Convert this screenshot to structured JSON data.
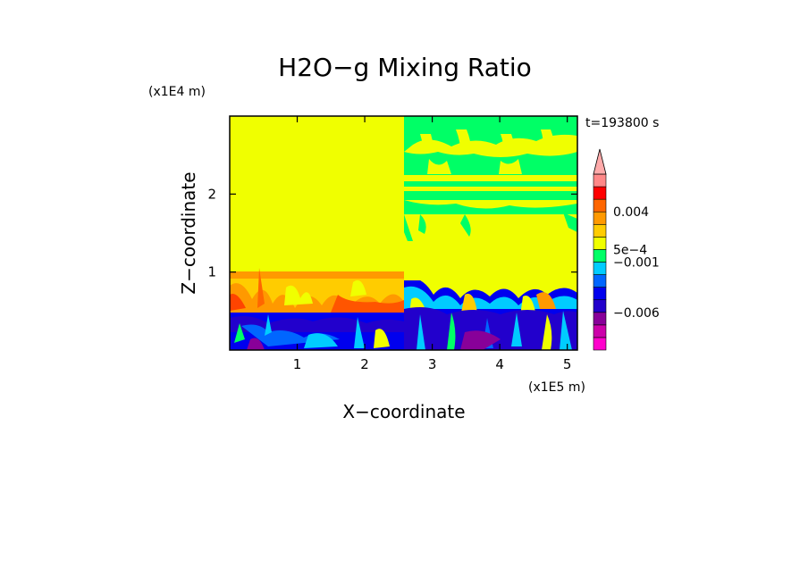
{
  "chart_data": {
    "type": "heatmap",
    "title": "H2O−g Mixing Ratio",
    "xlabel": "X−coordinate",
    "ylabel": "Z−coordinate",
    "x_scale_label": "(x1E5 m)",
    "y_scale_label": "(x1E4 m)",
    "time_label": "t=193800 s",
    "xlim": [
      0,
      5.15
    ],
    "ylim": [
      0,
      3.0
    ],
    "x_ticks": [
      1,
      2,
      3,
      4,
      5
    ],
    "x_tick_labels": [
      "1",
      "2",
      "3",
      "4",
      "5"
    ],
    "y_ticks": [
      1,
      2
    ],
    "y_tick_labels": [
      "1",
      "2"
    ],
    "colorbar": {
      "extend": "max",
      "colors": [
        "#ff00cc",
        "#cc00aa",
        "#880099",
        "#2200cc",
        "#0000ee",
        "#0066ff",
        "#00ccff",
        "#00ff66",
        "#f0ff00",
        "#ffcc00",
        "#ff9900",
        "#ff6600",
        "#ff0000",
        "#ff8888"
      ],
      "extend_color": "#ffaaaa",
      "labels": [
        "0.004",
        "5e−4",
        "−0.001",
        "−0.006"
      ],
      "label_level_index": [
        11,
        8,
        7,
        3
      ]
    },
    "regions": [
      {
        "x": [
          0,
          2.55
        ],
        "z": [
          1.0,
          3.0
        ],
        "value": "yellow"
      },
      {
        "x": [
          0,
          2.55
        ],
        "z": [
          0.5,
          1.0
        ],
        "value": "orange-red mixed"
      },
      {
        "x": [
          0,
          2.55
        ],
        "z": [
          0,
          0.5
        ],
        "value": "blue mixed"
      },
      {
        "x": [
          2.55,
          5.15
        ],
        "z": [
          1.4,
          3.0
        ],
        "value": "yellow with green streaks"
      },
      {
        "x": [
          2.55,
          5.15
        ],
        "z": [
          0.85,
          1.4
        ],
        "value": "yellow"
      },
      {
        "x": [
          2.55,
          5.15
        ],
        "z": [
          0,
          0.85
        ],
        "value": "blue-cyan-yellow mixed"
      }
    ]
  }
}
